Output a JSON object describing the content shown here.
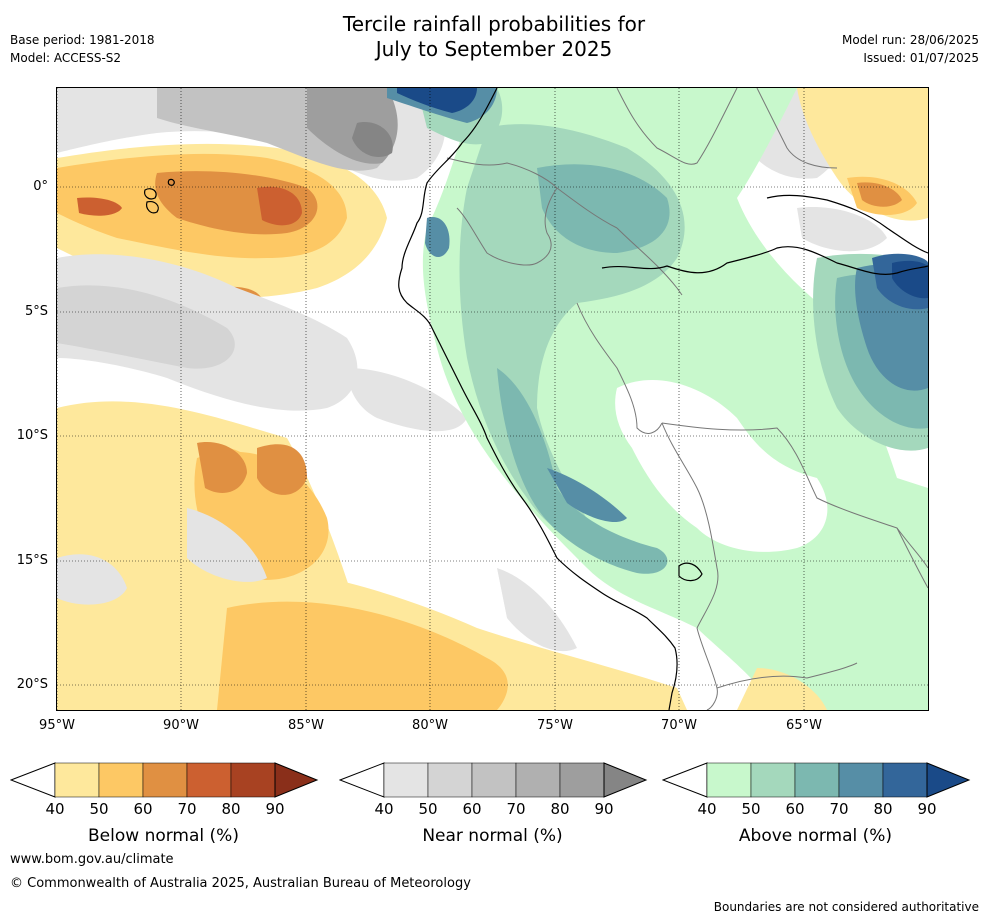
{
  "header": {
    "title_line1": "Tercile rainfall probabilities for",
    "title_line2": "July to September 2025",
    "base_period": "Base period: 1981-2018",
    "model": "Model: ACCESS-S2",
    "model_run": "Model run: 28/06/2025",
    "issued": "Issued: 01/07/2025"
  },
  "map": {
    "lon_labels": [
      "95°W",
      "90°W",
      "85°W",
      "80°W",
      "75°W",
      "70°W",
      "65°W"
    ],
    "lat_labels": [
      "0°",
      "5°S",
      "10°S",
      "15°S",
      "20°S"
    ],
    "extent": {
      "lon": [
        -95,
        -60
      ],
      "lat": [
        -21,
        4
      ]
    }
  },
  "colorbars": [
    {
      "id": "below",
      "title": "Below normal (%)",
      "labels": [
        "40",
        "50",
        "60",
        "70",
        "80",
        "90"
      ],
      "colors": [
        "#fee89c",
        "#fdc864",
        "#e09042",
        "#cc6030",
        "#a84222",
        "#8a2f1a"
      ]
    },
    {
      "id": "near",
      "title": "Near normal (%)",
      "labels": [
        "40",
        "50",
        "60",
        "70",
        "80",
        "90"
      ],
      "colors": [
        "#e4e4e4",
        "#d4d4d4",
        "#c2c2c2",
        "#b0b0b0",
        "#9e9e9e",
        "#858585"
      ]
    },
    {
      "id": "above",
      "title": "Above normal (%)",
      "labels": [
        "40",
        "50",
        "60",
        "70",
        "80",
        "90"
      ],
      "colors": [
        "#c8f8cc",
        "#a4d8bc",
        "#7cb8b0",
        "#568ea6",
        "#33669a",
        "#1a4a88"
      ]
    }
  ],
  "footer": {
    "url": "www.bom.gov.au/climate",
    "copyright": "© Commonwealth of Australia 2025, Australian Bureau of Meteorology",
    "disclaimer": "Boundaries are not considered authoritative"
  }
}
